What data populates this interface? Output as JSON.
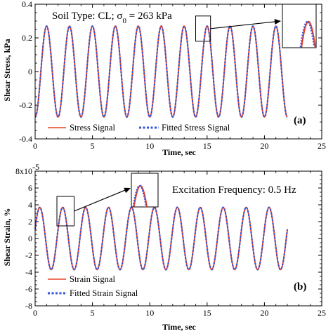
{
  "chart_data": [
    {
      "id": "a",
      "type": "line",
      "panel_label": "(a)",
      "annotation_prefix": "Soil Type: CL; σ",
      "annotation_subscript": "0",
      "annotation_suffix": " = 263 kPa",
      "xlabel": "Time, sec",
      "ylabel": "Shear Stress, kPa",
      "xlim": [
        0,
        25
      ],
      "ylim": [
        -0.4,
        0.4
      ],
      "x_ticks": [
        "0",
        "5",
        "10",
        "15",
        "20",
        "25"
      ],
      "y_ticks": [
        "-0.4",
        "-0.2",
        "0",
        "0.2",
        "0.4"
      ],
      "y_tick_values": [
        -0.4,
        -0.2,
        0,
        0.2,
        0.4
      ],
      "x_tick_values": [
        0,
        5,
        10,
        15,
        20,
        25
      ],
      "signal": {
        "amplitude": 0.27,
        "frequency_hz": 0.5,
        "phase_rad": -1.5708,
        "t_start": 0,
        "t_end": 22,
        "offset": 0
      },
      "series": [
        {
          "name": "Stress Signal",
          "color": "#e8402a",
          "style": "solid"
        },
        {
          "name": "Fitted Stress Signal",
          "color": "#3355dd",
          "style": "dotted"
        }
      ],
      "zoom": {
        "source_x": [
          14.0,
          15.3
        ],
        "source_y": [
          0.18,
          0.33
        ]
      },
      "legend_position": "bottom-left"
    },
    {
      "id": "b",
      "type": "line",
      "panel_label": "(b)",
      "annotation": "Excitation Frequency: 0.5 Hz",
      "xlabel": "Time, sec",
      "ylabel": "Shear Strain, %",
      "xlim": [
        0,
        25
      ],
      "ylim": [
        -8e-05,
        8e-05
      ],
      "x_ticks": [
        "0",
        "5",
        "10",
        "15",
        "20",
        "25"
      ],
      "y_ticks": [
        "-8",
        "-6",
        "-4",
        "-2",
        "0",
        "2",
        "4",
        "6",
        "8x10"
      ],
      "y_top_exponent": "-5",
      "y_tick_values": [
        -8,
        -6,
        -4,
        -2,
        0,
        2,
        4,
        6,
        8
      ],
      "x_tick_values": [
        0,
        5,
        10,
        15,
        20,
        25
      ],
      "signal": {
        "amplitude": 3.7,
        "frequency_hz": 0.5,
        "phase_rad": 0.3,
        "t_start": 0,
        "t_end": 22,
        "offset": 0
      },
      "series": [
        {
          "name": "Strain Signal",
          "color": "#e8402a",
          "style": "solid"
        },
        {
          "name": "Fitted Strain Signal",
          "color": "#3355dd",
          "style": "dotted"
        }
      ],
      "zoom": {
        "source_x": [
          1.9,
          3.4
        ],
        "source_y": [
          1.5,
          5.0
        ]
      },
      "legend_position": "bottom-left"
    }
  ]
}
